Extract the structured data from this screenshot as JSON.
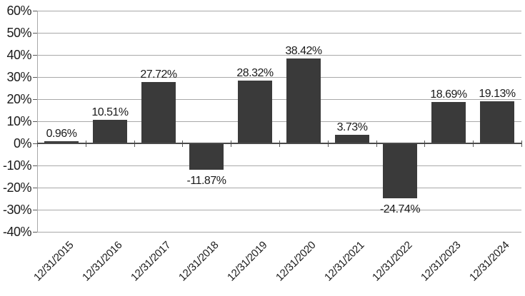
{
  "chart_data": {
    "type": "bar",
    "title": "",
    "xlabel": "",
    "ylabel": "",
    "categories": [
      "12/31/2015",
      "12/31/2016",
      "12/31/2017",
      "12/31/2018",
      "12/31/2019",
      "12/31/2020",
      "12/31/2021",
      "12/31/2022",
      "12/31/2023",
      "12/31/2024"
    ],
    "values": [
      0.96,
      10.51,
      27.72,
      -11.87,
      28.32,
      38.42,
      3.73,
      -24.74,
      18.69,
      19.13
    ],
    "point_labels": [
      "0.96%",
      "10.51%",
      "27.72%",
      "-11.87%",
      "28.32%",
      "38.42%",
      "3.73%",
      "-24.74%",
      "18.69%",
      "19.13%"
    ],
    "ytick_labels": [
      "60%",
      "50%",
      "40%",
      "30%",
      "20%",
      "10%",
      "0%",
      "-10%",
      "-20%",
      "-30%",
      "-40%"
    ],
    "ylim": [
      -40,
      60
    ],
    "ytick_step": 10,
    "grid": true,
    "legend": "none",
    "colors": {
      "bar": "#3a3a3a",
      "gridline": "#a8a8a8",
      "zero_line": "#4a4a4a",
      "axis_line": "#a8a8a8",
      "tick": "#595959",
      "text": "#1a1a1a",
      "background": "#ffffff"
    }
  }
}
